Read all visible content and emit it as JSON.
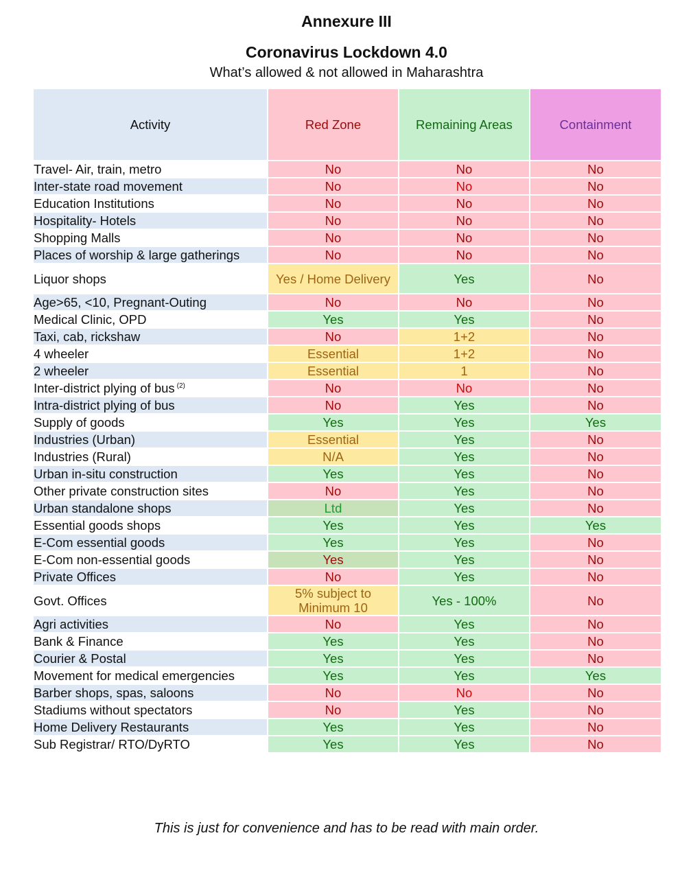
{
  "title": "Annexure III",
  "heading": "Coronavirus Lockdown 4.0",
  "subheading": "What’s allowed & not allowed in Maharashtra",
  "columns": [
    "Activity",
    "Red Zone",
    "Remaining Areas",
    "Containment"
  ],
  "colors": {
    "no_bg": "#fec6ce",
    "no_text": "#9c0a0a",
    "yes_bg": "#c6efcd",
    "yes_text": "#116a11",
    "warn_bg": "#fee9a0",
    "warn_text": "#9d6412",
    "header_activity_bg": "#dde8f4",
    "header_containment_bg": "#ee9ee3"
  },
  "rows": [
    {
      "activity": "Travel- Air, train, metro",
      "red": "No",
      "remaining": "No",
      "containment": "No"
    },
    {
      "activity": "Inter-state road movement",
      "red": "No",
      "remaining": "No",
      "containment": "No"
    },
    {
      "activity": "Education Institutions",
      "red": "No",
      "remaining": "No",
      "containment": "No"
    },
    {
      "activity": "Hospitality- Hotels",
      "red": "No",
      "remaining": "No",
      "containment": "No"
    },
    {
      "activity": "Shopping Malls",
      "red": "No",
      "remaining": "No",
      "containment": "No"
    },
    {
      "activity": "Places of worship & large gatherings",
      "red": "No",
      "remaining": "No",
      "containment": "No"
    },
    {
      "activity": "Liquor shops",
      "red": "Yes / Home Delivery",
      "remaining": "Yes",
      "containment": "No"
    },
    {
      "activity": "Age>65, <10, Pregnant-Outing",
      "red": "No",
      "remaining": "No",
      "containment": "No"
    },
    {
      "activity": "Medical Clinic, OPD",
      "red": "Yes",
      "remaining": "Yes",
      "containment": "No"
    },
    {
      "activity": "Taxi, cab, rickshaw",
      "red": "No",
      "remaining": "1+2",
      "containment": "No"
    },
    {
      "activity": "4 wheeler",
      "red": "Essential",
      "remaining": "1+2",
      "containment": "No"
    },
    {
      "activity": "2 wheeler",
      "red": "Essential",
      "remaining": "1",
      "containment": "No"
    },
    {
      "activity": "Inter-district plying of bus",
      "activity_note": "(2)",
      "red": "No",
      "remaining": "No",
      "containment": "No"
    },
    {
      "activity": "Intra-district plying of bus",
      "red": "No",
      "remaining": "Yes",
      "containment": "No"
    },
    {
      "activity": "Supply of goods",
      "red": "Yes",
      "remaining": "Yes",
      "containment": "Yes"
    },
    {
      "activity": "Industries (Urban)",
      "red": "Essential",
      "remaining": "Yes",
      "containment": "No"
    },
    {
      "activity": "Industries (Rural)",
      "red": "N/A",
      "remaining": "Yes",
      "containment": "No"
    },
    {
      "activity": "Urban in-situ construction",
      "red": "Yes",
      "remaining": "Yes",
      "containment": "No"
    },
    {
      "activity": "Other private construction sites",
      "red": "No",
      "remaining": "Yes",
      "containment": "No"
    },
    {
      "activity": "Urban standalone shops",
      "red": "Ltd",
      "remaining": "Yes",
      "containment": "No"
    },
    {
      "activity": "Essential goods shops",
      "red": "Yes",
      "remaining": "Yes",
      "containment": "Yes"
    },
    {
      "activity": "E-Com essential goods",
      "red": "Yes",
      "remaining": "Yes",
      "containment": "No"
    },
    {
      "activity": "E-Com non-essential goods",
      "red": "Yes",
      "remaining": "Yes",
      "containment": "No"
    },
    {
      "activity": "Private Offices",
      "red": "No",
      "remaining": "Yes",
      "containment": "No"
    },
    {
      "activity": "Govt. Offices",
      "red": "5% subject to Minimum 10",
      "remaining": "Yes - 100%",
      "containment": "No"
    },
    {
      "activity": "Agri activities",
      "red": "No",
      "remaining": "Yes",
      "containment": "No"
    },
    {
      "activity": "Bank & Finance",
      "red": "Yes",
      "remaining": "Yes",
      "containment": "No"
    },
    {
      "activity": "Courier & Postal",
      "red": "Yes",
      "remaining": "Yes",
      "containment": "No"
    },
    {
      "activity": "Movement for medical emergencies",
      "red": "Yes",
      "remaining": "Yes",
      "containment": "Yes"
    },
    {
      "activity": "Barber shops, spas, saloons",
      "red": "No",
      "remaining": "No",
      "containment": "No"
    },
    {
      "activity": "Stadiums without spectators",
      "red": "No",
      "remaining": "Yes",
      "containment": "No"
    },
    {
      "activity": "Home Delivery Restaurants",
      "red": "Yes",
      "remaining": "Yes",
      "containment": "No"
    },
    {
      "activity": "Sub Registrar/ RTO/DyRTO",
      "red": "Yes",
      "remaining": "Yes",
      "containment": "No"
    }
  ],
  "footer": "This is just for convenience and has to be read with main order."
}
